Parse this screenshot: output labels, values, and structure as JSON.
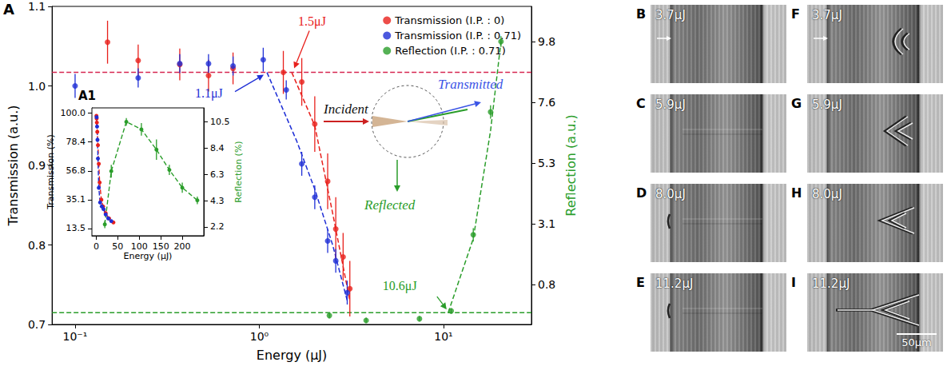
{
  "chart_data": [
    {
      "type": "scatter",
      "title": "A",
      "x_label": "Energy (μJ)",
      "y_label": "Transmission (a.u.)",
      "y2_label": "Reflection (a.u.)",
      "log": "x",
      "grid": false,
      "legend": "upper right",
      "xlim": [
        0.075,
        30
      ],
      "xticks": [
        {
          "value": 0.1,
          "label": "10⁻¹"
        },
        {
          "value": 1,
          "label": "10⁰"
        },
        {
          "value": 10,
          "label": "10¹"
        }
      ],
      "ylim": [
        0.7,
        1.1
      ],
      "yticks": [
        0.7,
        0.8,
        0.9,
        {
          "value": 1,
          "label": "1.0"
        },
        1.1
      ],
      "y2lim": [
        -0.68,
        11.1
      ],
      "y2ticks": [
        0.8,
        {
          "value": 3.05,
          "label": "3.1"
        },
        5.3,
        {
          "value": 7.55,
          "label": "7.6"
        },
        9.8
      ],
      "series": [
        {
          "name": "Transmission (I.P. : 0)",
          "color": "#e8201c",
          "marker": "circle",
          "x": [
            0.15,
            0.22,
            0.37,
            0.53,
            0.72,
            1.35,
            1.7,
            2.0,
            2.35,
            2.6,
            2.85,
            3.1
          ],
          "values": [
            1.055,
            1.032,
            1.027,
            1.013,
            1.022,
            1.017,
            1.005,
            0.952,
            0.88,
            0.82,
            0.785,
            0.745
          ],
          "errors": [
            0.027,
            0.02,
            0.02,
            0.02,
            0.02,
            0.027,
            0.03,
            0.035,
            0.035,
            0.04,
            0.03,
            0.035
          ]
        },
        {
          "name": "Transmission (I.P. : 0.71)",
          "color": "#1f2fd6",
          "marker": "circle",
          "x": [
            0.1,
            0.22,
            0.37,
            0.53,
            0.72,
            1.05,
            1.4,
            1.7,
            2.0,
            2.35,
            2.6,
            3.0
          ],
          "values": [
            1.0,
            1.01,
            1.028,
            1.028,
            1.025,
            1.033,
            0.995,
            0.902,
            0.86,
            0.805,
            0.78,
            0.74
          ],
          "errors": [
            0.015,
            0.012,
            0.012,
            0.012,
            0.012,
            0.015,
            0.012,
            0.015,
            0.015,
            0.015,
            0.015,
            0.015
          ]
        },
        {
          "name": "Reflection (I.P. : 0.71)",
          "color": "#2a9d2a",
          "marker": "circle",
          "axis": "y2",
          "x": [
            2.4,
            3.8,
            7.4,
            11,
            14.5,
            18,
            20.5
          ],
          "values": [
            -0.35,
            -0.53,
            -0.47,
            -0.18,
            2.64,
            7.19,
            9.8
          ],
          "errors": [
            0.1,
            0.1,
            0.1,
            0.1,
            0.25,
            0.25,
            0.2
          ]
        }
      ],
      "guides": [
        {
          "color": "#d6264f",
          "line_style": "dashed",
          "x": [
            0.075,
            30
          ],
          "values": [
            1.017,
            1.017
          ]
        },
        {
          "color": "#2a9d2a",
          "line_style": "dashed",
          "axis": "y2",
          "x": [
            0.075,
            30
          ],
          "values": [
            -0.24,
            -0.24
          ]
        },
        {
          "color": "#e8201c",
          "line_style": "dashed",
          "x": [
            1.5,
            2.0,
            2.5,
            3.1
          ],
          "values": [
            1.017,
            0.95,
            0.84,
            0.73
          ]
        },
        {
          "color": "#1f2fd6",
          "line_style": "dashed",
          "x": [
            1.1,
            1.6,
            2.0,
            2.5,
            3.0
          ],
          "values": [
            1.017,
            0.93,
            0.87,
            0.8,
            0.73
          ]
        },
        {
          "color": "#2a9d2a",
          "line_style": "dashed",
          "axis": "y2",
          "x": [
            10.6,
            14.5,
            18,
            20.5
          ],
          "values": [
            -0.24,
            2.5,
            6.5,
            9.8
          ]
        }
      ],
      "annotations": [
        {
          "text": "1.5μJ",
          "x": 1.5,
          "y": 1.017,
          "color": "#e8201c"
        },
        {
          "text": "1.1μJ",
          "x": 1.1,
          "y": 1.017,
          "color": "#1f2fd6"
        },
        {
          "text": "10.6μJ",
          "x": 10.6,
          "y": -0.24,
          "axis": "y2",
          "color": "#2a9d2a"
        }
      ]
    },
    {
      "type": "scatter",
      "title": "A1",
      "x_label": "Energy (μJ)",
      "y_label": "Transmission (%)",
      "y2_label": "Reflection (%)",
      "grid": false,
      "xlim": [
        -10,
        250
      ],
      "xticks": [
        0,
        50,
        100,
        150,
        200
      ],
      "ylim": [
        8,
        104
      ],
      "yticks": [
        13.5,
        {
          "value": 35.125,
          "label": "35.1"
        },
        {
          "value": 56.75,
          "label": "56.8"
        },
        {
          "value": 78.375,
          "label": "78.4"
        },
        {
          "value": 100,
          "label": "100.0"
        }
      ],
      "y2lim": [
        1.5,
        11.6
      ],
      "y2ticks": [
        2.2,
        {
          "value": 4.275,
          "label": "4.3"
        },
        {
          "value": 6.35,
          "label": "6.3"
        },
        {
          "value": 8.425,
          "label": "8.4"
        },
        10.5
      ],
      "series": [
        {
          "color": "#e8201c",
          "marker": "circle",
          "line_style": "dashed",
          "x": [
            0.5,
            1,
            1.5,
            2.5,
            4,
            6,
            8,
            12,
            16,
            22,
            30,
            40
          ],
          "values": [
            98,
            96,
            93,
            86,
            76,
            62,
            48,
            35,
            30,
            25,
            21,
            18
          ]
        },
        {
          "color": "#1f2fd6",
          "marker": "circle",
          "line_style": "dashed",
          "x": [
            1,
            2,
            3,
            4,
            6,
            9,
            13,
            17,
            22,
            28,
            35
          ],
          "values": [
            97,
            90,
            80,
            66,
            44,
            33,
            30,
            28,
            24,
            21,
            19
          ]
        },
        {
          "color": "#2a9d2a",
          "marker": "circle",
          "line_style": "dashed",
          "axis": "y2",
          "x": [
            20,
            35,
            70,
            105,
            140,
            170,
            200,
            235
          ],
          "values": [
            2.4,
            6.6,
            10.5,
            9.9,
            8.3,
            6.7,
            5.3,
            4.3
          ],
          "errors": [
            0.3,
            0.5,
            0.3,
            0.5,
            0.8,
            0.4,
            0.4,
            0.3
          ]
        }
      ]
    }
  ],
  "schematic": {
    "incident": {
      "text": "Incident",
      "color": "#111111",
      "arrow_color": "#cc2020"
    },
    "transmitted": {
      "text": "Transmitted",
      "color": "#3b55e6"
    },
    "reflected": {
      "text": "Reflected",
      "color": "#2a9d2a"
    }
  },
  "images": {
    "panels": [
      {
        "label": "B",
        "energy": "3.7μJ"
      },
      {
        "label": "C",
        "energy": "5.9μJ"
      },
      {
        "label": "D",
        "energy": "8.0μJ"
      },
      {
        "label": "E",
        "energy": "11.2μJ"
      },
      {
        "label": "F",
        "energy": "3.7μJ"
      },
      {
        "label": "G",
        "energy": "5.9μJ"
      },
      {
        "label": "H",
        "energy": "8.0μJ"
      },
      {
        "label": "I",
        "energy": "11.2μJ"
      }
    ],
    "scale_bar": "50μm"
  }
}
